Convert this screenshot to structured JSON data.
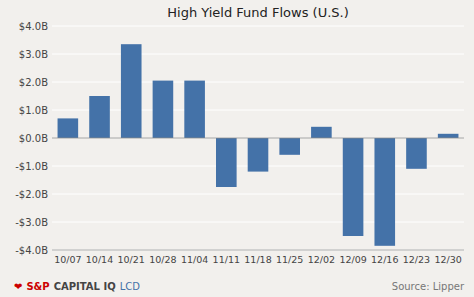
{
  "chart_data": {
    "type": "bar",
    "title": "High Yield Fund Flows (U.S.)",
    "categories": [
      "10/07",
      "10/14",
      "10/21",
      "10/28",
      "11/04",
      "11/11",
      "11/18",
      "11/25",
      "12/02",
      "12/09",
      "12/16",
      "12/23",
      "12/30"
    ],
    "values": [
      0.7,
      1.5,
      3.35,
      2.05,
      2.05,
      -1.75,
      -1.2,
      -0.6,
      0.4,
      -3.5,
      -3.85,
      -1.1,
      0.15
    ],
    "color": "#4472a8",
    "ylim": [
      -4.0,
      4.0
    ],
    "yticks": [
      {
        "value": -4.0,
        "label": "-$4.0B"
      },
      {
        "value": -3.0,
        "label": "-$3.0B"
      },
      {
        "value": -2.0,
        "label": "-$2.0B"
      },
      {
        "value": -1.0,
        "label": "-$1.0B"
      },
      {
        "value": 0.0,
        "label": "$0.0B"
      },
      {
        "value": 1.0,
        "label": "$1.0B"
      },
      {
        "value": 2.0,
        "label": "$2.0B"
      },
      {
        "value": 3.0,
        "label": "$3.0B"
      },
      {
        "value": 4.0,
        "label": "$4.0B"
      }
    ],
    "grid": true,
    "annotations": [
      "❤",
      "S&P",
      "CAPITAL IQ",
      "LCD",
      "Source: Lipper"
    ]
  }
}
